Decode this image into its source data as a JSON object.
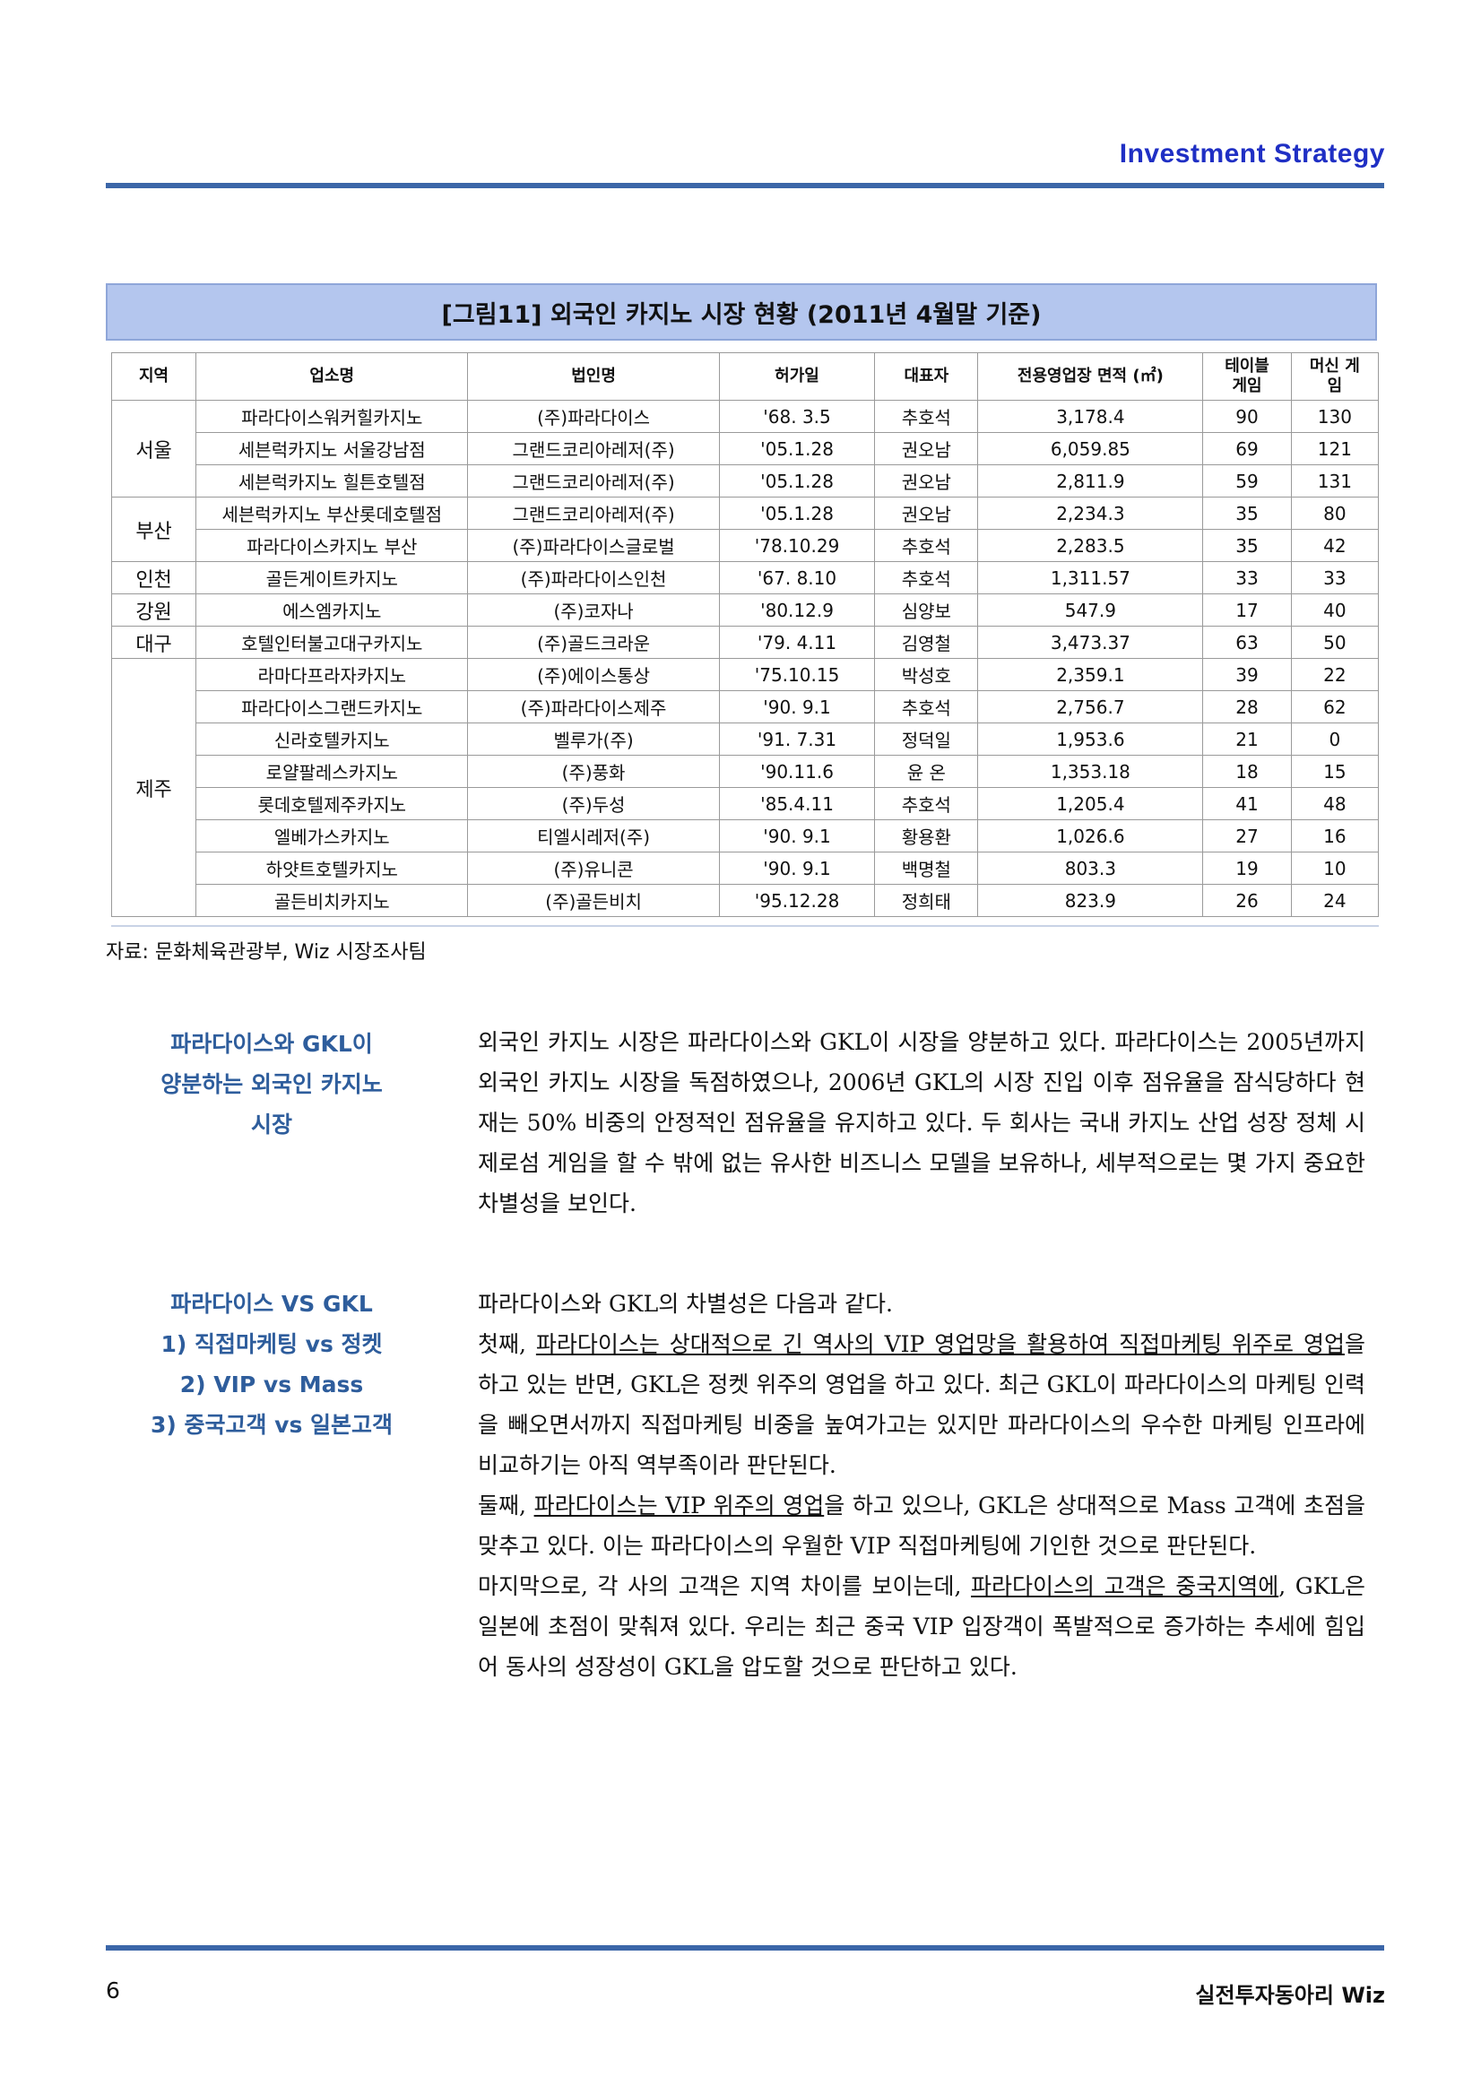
{
  "header": {
    "title": "Investment  Strategy"
  },
  "figure": {
    "title": "[그림11] 외국인 카지노 시장 현황 (2011년 4월말 기준)"
  },
  "table": {
    "headers": [
      "지역",
      "업소명",
      "법인명",
      "허가일",
      "대표자",
      "전용영업장 면적 (㎡)",
      "테이블 게임",
      "머신 게임"
    ],
    "regions": [
      "서울",
      "부산",
      "인천",
      "강원",
      "대구",
      "제주"
    ],
    "rows": [
      [
        "파라다이스워커힐카지노",
        "(주)파라다이스",
        "'68.  3.5",
        "추호석",
        "3,178.4",
        "90",
        "130"
      ],
      [
        "세븐럭카지노 서울강남점",
        "그랜드코리아레저(주)",
        "'05.1.28",
        "권오남",
        "6,059.85",
        "69",
        "121"
      ],
      [
        "세븐럭카지노 힐튼호텔점",
        "그랜드코리아레저(주)",
        "'05.1.28",
        "권오남",
        "2,811.9",
        "59",
        "131"
      ],
      [
        "세븐럭카지노 부산롯데호텔점",
        "그랜드코리아레저(주)",
        "'05.1.28",
        "권오남",
        "2,234.3",
        "35",
        "80"
      ],
      [
        "파라다이스카지노 부산",
        "(주)파라다이스글로벌",
        "'78.10.29",
        "추호석",
        "2,283.5",
        "35",
        "42"
      ],
      [
        "골든게이트카지노",
        "(주)파라다이스인천",
        "'67.  8.10",
        "추호석",
        "1,311.57",
        "33",
        "33"
      ],
      [
        "에스엠카지노",
        "(주)코자나",
        "'80.12.9",
        "심양보",
        "547.9",
        "17",
        "40"
      ],
      [
        "호텔인터불고대구카지노",
        "(주)골드크라운",
        "'79.  4.11",
        "김영철",
        "3,473.37",
        "63",
        "50"
      ],
      [
        "라마다프라자카지노",
        "(주)에이스통상",
        "'75.10.15",
        "박성호",
        "2,359.1",
        "39",
        "22"
      ],
      [
        "파라다이스그랜드카지노",
        "(주)파라다이스제주",
        "'90.  9.1",
        "추호석",
        "2,756.7",
        "28",
        "62"
      ],
      [
        "신라호텔카지노",
        "벨루가(주)",
        "'91.  7.31",
        "정덕일",
        "1,953.6",
        "21",
        "0"
      ],
      [
        "로얄팔레스카지노",
        "(주)풍화",
        "'90.11.6",
        "윤   온",
        "1,353.18",
        "18",
        "15"
      ],
      [
        "롯데호텔제주카지노",
        "(주)두성",
        "'85.4.11",
        "추호석",
        "1,205.4",
        "41",
        "48"
      ],
      [
        "엘베가스카지노",
        "티엘시레저(주)",
        "'90.  9.1",
        "황용환",
        "1,026.6",
        "27",
        "16"
      ],
      [
        "하얏트호텔카지노",
        "(주)유니콘",
        "'90.  9.1",
        "백명철",
        "803.3",
        "19",
        "10"
      ],
      [
        "골든비치카지노",
        "(주)골든비치",
        "'95.12.28",
        "정희태",
        "823.9",
        "26",
        "24"
      ]
    ]
  },
  "source": "자료: 문화체육관광부, Wiz 시장조사팀",
  "section1": {
    "heading": [
      "파라다이스와 GKL이",
      "양분하는 외국인 카지노",
      "시장"
    ],
    "text": "외국인 카지노 시장은 파라다이스와 GKL이 시장을 양분하고 있다. 파라다이스는 2005년까지 외국인 카지노 시장을 독점하였으나, 2006년 GKL의 시장 진입 이후 점유율을 잠식당하다 현재는 50% 비중의 안정적인 점유율을 유지하고 있다. 두 회사는 국내 카지노 산업 성장 정체 시 제로섬 게임을 할 수 밖에 없는 유사한 비즈니스 모델을 보유하나, 세부적으로는 몇 가지 중요한 차별성을 보인다."
  },
  "section2": {
    "heading": [
      "파라다이스 VS GKL",
      "1) 직접마케팅 vs 정켓",
      "2) VIP vs Mass",
      "3) 중국고객 vs 일본고객"
    ],
    "intro": "파라다이스와 GKL의 차별성은 다음과 같다.",
    "p1_a": "첫째, ",
    "p1_u": "파라다이스는 상대적으로 긴 역사의 VIP 영업망을 활용하여 직접마케팅 위주로 영업",
    "p1_b": "을 하고 있는 반면, GKL은 정켓 위주의 영업을 하고 있다. 최근 GKL이 파라다이스의 마케팅 인력을 빼오면서까지 직접마케팅 비중을 높여가고는 있지만 파라다이스의 우수한 마케팅 인프라에 비교하기는 아직 역부족이라 판단된다.",
    "p2_a": "둘째, ",
    "p2_u": "파라다이스는 VIP 위주의 영업",
    "p2_b": "을 하고 있으나, GKL은 상대적으로 Mass 고객에 초점을 맞추고 있다. 이는 파라다이스의 우월한 VIP 직접마케팅에 기인한 것으로 판단된다.",
    "p3_a": "마지막으로, 각 사의 고객은 지역 차이를 보이는데, ",
    "p3_u": "파라다이스의 고객은 중국지역에",
    "p3_b": ", GKL은 일본에 초점이 맞춰져 있다. 우리는 최근 중국 VIP 입장객이 폭발적으로 증가하는 추세에 힘입어 동사의 성장성이 GKL을 압도할 것으로 판단하고 있다."
  },
  "footer": {
    "page": "6",
    "brand": "실전투자동아리 Wiz"
  }
}
